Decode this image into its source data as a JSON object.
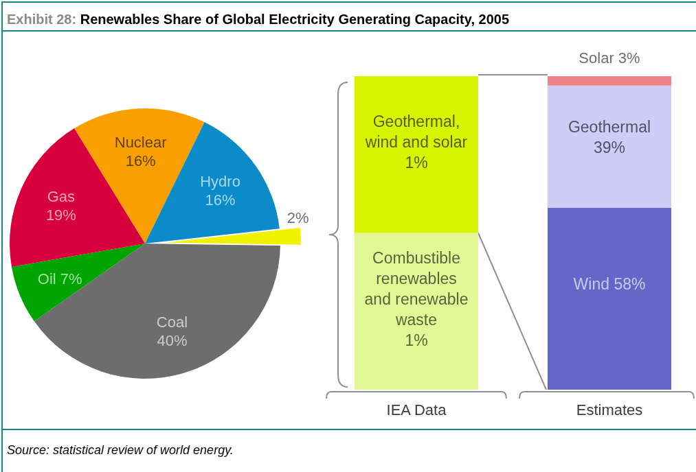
{
  "chart_data": [
    {
      "type": "pie",
      "title": "Exhibit 28: Renewables Share of Global Electricity Generating Capacity, 2005",
      "categories": [
        "Nuclear",
        "Hydro",
        null,
        "Coal",
        "Oil",
        "Gas"
      ],
      "values": [
        16,
        16,
        2,
        40,
        7,
        19
      ],
      "colors": [
        "#f9a000",
        "#0b8cc8",
        "#f2f200",
        "#6d6d6d",
        "#00a400",
        "#d8003c"
      ],
      "value_labels": [
        "16%",
        "16%",
        "2%",
        "40%",
        "7%",
        "19%"
      ],
      "annotations": [
        "Source: statistical review of world energy."
      ]
    },
    {
      "type": "bar",
      "stacked": true,
      "categories": [
        "IEA Data"
      ],
      "series": [
        {
          "name": "Combustible renewables and renewable waste",
          "color": "#e2f896",
          "values": [
            1
          ],
          "value_labels": [
            "1%"
          ]
        },
        {
          "name": "Geothermal, wind and solar",
          "color": "#d8f400",
          "values": [
            1
          ],
          "value_labels": [
            "1%"
          ]
        }
      ]
    },
    {
      "type": "bar",
      "stacked": true,
      "categories": [
        "Estimates"
      ],
      "series": [
        {
          "name": "Wind",
          "color": "#6466c8",
          "values": [
            58
          ],
          "value_labels": [
            "58%"
          ]
        },
        {
          "name": "Geothermal",
          "color": "#cdcdf8",
          "values": [
            39
          ],
          "value_labels": [
            "39%"
          ]
        },
        {
          "name": "Solar",
          "color": "#f08484",
          "values": [
            3
          ],
          "value_labels": [
            "3%"
          ]
        }
      ]
    }
  ]
}
